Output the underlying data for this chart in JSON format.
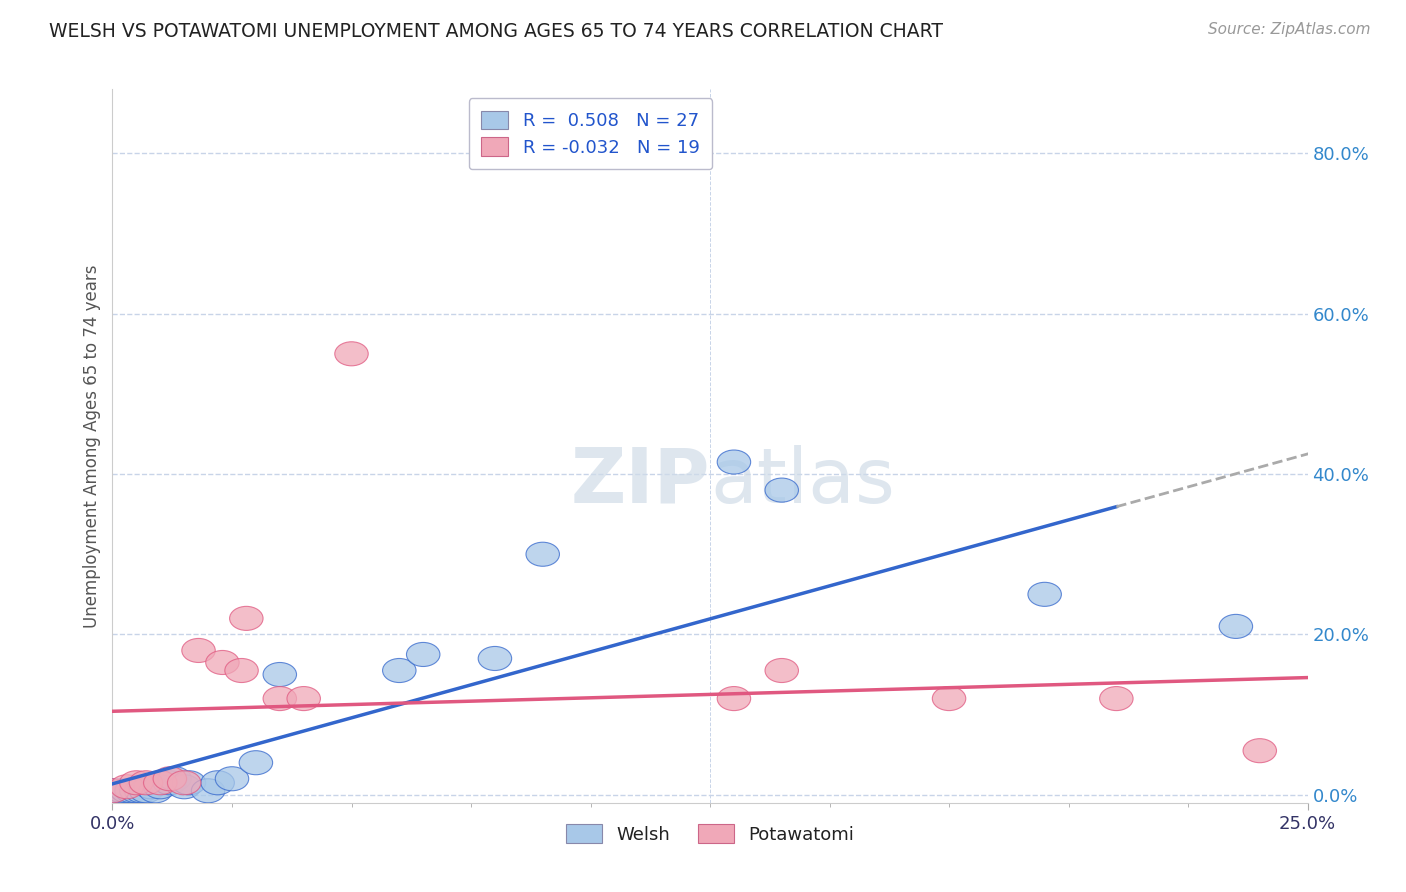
{
  "title": "WELSH VS POTAWATOMI UNEMPLOYMENT AMONG AGES 65 TO 74 YEARS CORRELATION CHART",
  "source": "Source: ZipAtlas.com",
  "ylabel": "Unemployment Among Ages 65 to 74 years",
  "xlim": [
    0.0,
    0.25
  ],
  "ylim": [
    -0.01,
    0.88
  ],
  "ytick_vals": [
    0.0,
    0.2,
    0.4,
    0.6,
    0.8
  ],
  "R_welsh": 0.508,
  "N_welsh": 27,
  "R_potawatomi": -0.032,
  "N_potawatomi": 19,
  "welsh_color": "#a8c8e8",
  "potawatomi_color": "#f0a8b8",
  "welsh_line_color": "#3366cc",
  "potawatomi_line_color": "#e05880",
  "welsh_x": [
    0.0,
    0.002,
    0.003,
    0.004,
    0.005,
    0.006,
    0.007,
    0.008,
    0.009,
    0.01,
    0.012,
    0.013,
    0.015,
    0.016,
    0.02,
    0.022,
    0.025,
    0.03,
    0.035,
    0.06,
    0.065,
    0.08,
    0.09,
    0.13,
    0.14,
    0.195,
    0.235
  ],
  "welsh_y": [
    0.005,
    0.005,
    0.005,
    0.005,
    0.005,
    0.005,
    0.005,
    0.01,
    0.005,
    0.01,
    0.015,
    0.02,
    0.01,
    0.015,
    0.005,
    0.015,
    0.02,
    0.04,
    0.15,
    0.155,
    0.175,
    0.17,
    0.3,
    0.415,
    0.38,
    0.25,
    0.21
  ],
  "potawatomi_x": [
    0.0,
    0.003,
    0.005,
    0.007,
    0.01,
    0.012,
    0.015,
    0.018,
    0.023,
    0.027,
    0.028,
    0.035,
    0.04,
    0.05,
    0.13,
    0.14,
    0.175,
    0.21,
    0.24
  ],
  "potawatomi_y": [
    0.005,
    0.01,
    0.015,
    0.015,
    0.015,
    0.02,
    0.015,
    0.18,
    0.165,
    0.155,
    0.22,
    0.12,
    0.12,
    0.55,
    0.12,
    0.155,
    0.12,
    0.12,
    0.055
  ],
  "background_color": "#ffffff",
  "grid_color": "#c8d4e8",
  "watermark_color": "#d0dce8"
}
